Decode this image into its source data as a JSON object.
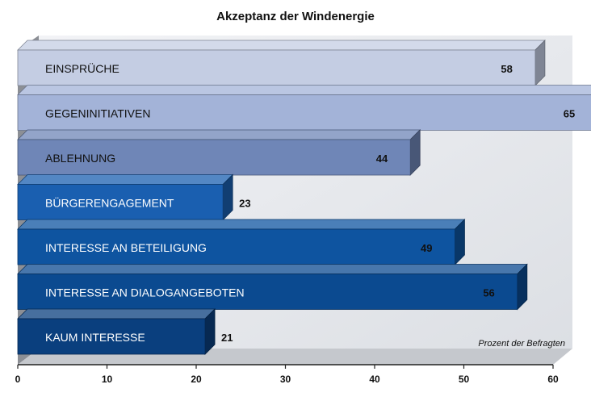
{
  "chart_data": {
    "type": "bar",
    "orientation": "horizontal",
    "title": "Akzeptanz der Windenergie",
    "categories": [
      "EINSPRÜCHE",
      "GEGENINITIATIVEN",
      "ABLEHNUNG",
      "BÜRGERENGAGEMENT",
      "INTERESSE AN BETEILIGUNG",
      "INTERESSE AN DIALOGANGEBOTEN",
      "KAUM INTERESSE"
    ],
    "values": [
      58,
      65,
      44,
      23,
      49,
      56,
      21
    ],
    "value_labels": [
      "58",
      "65",
      "44",
      "23",
      "49",
      "56",
      "21"
    ],
    "bar_colors": [
      "#c4cde3",
      "#a3b3d8",
      "#6f86b7",
      "#1a5fb0",
      "#0e54a0",
      "#0b4a90",
      "#0a3f7e"
    ],
    "xlim": [
      0,
      60
    ],
    "x_ticks": [
      0,
      10,
      20,
      30,
      40,
      50,
      60
    ],
    "tick_labels": [
      "0",
      "10",
      "20",
      "30",
      "40",
      "50",
      "60"
    ],
    "annotation": "Prozent der Befragten",
    "grid": false,
    "style": "3d"
  }
}
